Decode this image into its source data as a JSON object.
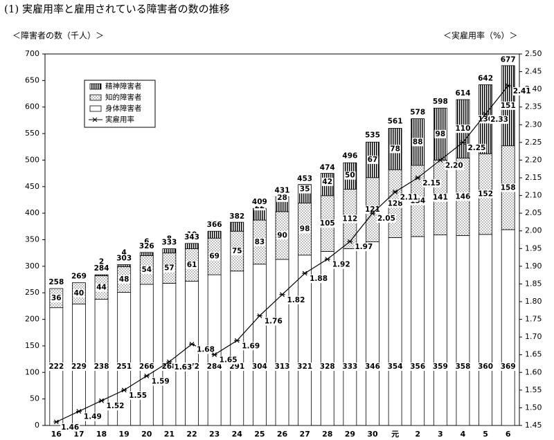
{
  "chart_data": {
    "type": "bar",
    "title": "(1) 実雇用率と雇用されている障害者の数の推移",
    "y_label": "＜障害者の数（千人）＞",
    "y2_label": "＜実雇用率（%）＞",
    "categories": [
      "16",
      "17",
      "18",
      "19",
      "20",
      "21",
      "22",
      "23",
      "24",
      "25",
      "26",
      "27",
      "28",
      "29",
      "30",
      "元",
      "2",
      "3",
      "4",
      "5",
      "6"
    ],
    "series": [
      {
        "name": "身体障害者",
        "color": "#ffffff",
        "fill": "none",
        "values": [
          222,
          229,
          238,
          251,
          266,
          268,
          272,
          284,
          291,
          304,
          313,
          321,
          328,
          333,
          346,
          354,
          356,
          359,
          358,
          360,
          369
        ]
      },
      {
        "name": "知的障害者",
        "color": "#ffffff",
        "fill": "dots",
        "values": [
          36,
          40,
          44,
          48,
          54,
          57,
          61,
          69,
          75,
          83,
          90,
          98,
          105,
          112,
          121,
          128,
          134,
          141,
          146,
          152,
          158
        ]
      },
      {
        "name": "精神障害者",
        "color": "#ffffff",
        "fill": "stripes",
        "values": [
          0,
          0,
          2,
          4,
          6,
          8,
          10,
          13,
          17,
          22,
          28,
          35,
          42,
          50,
          67,
          78,
          88,
          98,
          110,
          130,
          151
        ]
      },
      {
        "name": "実雇用率",
        "type": "line",
        "axis": "y2",
        "color": "#000000",
        "values": [
          1.46,
          1.49,
          1.52,
          1.55,
          1.59,
          1.63,
          1.68,
          1.65,
          1.69,
          1.76,
          1.82,
          1.88,
          1.92,
          1.97,
          2.05,
          2.11,
          2.15,
          2.2,
          2.25,
          2.33,
          2.41
        ],
        "value_labels": [
          "1.46",
          "1.49",
          "1.52",
          "1.55",
          "1.59",
          "1.63",
          "1.68",
          "1.65",
          "1.69",
          "1.76",
          "1.82",
          "1.88",
          "1.92",
          "1.97",
          "2.05",
          "2.11",
          "2.15",
          "2.20",
          "2.25",
          "2.33",
          "2.41"
        ]
      }
    ],
    "totals": [
      258,
      269,
      284,
      303,
      326,
      333,
      343,
      366,
      382,
      409,
      431,
      453,
      474,
      496,
      535,
      561,
      578,
      598,
      614,
      642,
      677
    ],
    "ylim": [
      0,
      700
    ],
    "yticks": [
      0,
      50,
      100,
      150,
      200,
      250,
      300,
      350,
      400,
      450,
      500,
      550,
      600,
      650,
      700
    ],
    "y2lim": [
      1.45,
      2.5
    ],
    "y2ticks": [
      1.45,
      {
        "value": 1.5,
        "label": "1.50"
      },
      1.55,
      {
        "value": 1.6,
        "label": "1.60"
      },
      1.65,
      {
        "value": 1.7,
        "label": "1.70"
      },
      1.75,
      {
        "value": 1.8,
        "label": "1.80"
      },
      1.85,
      {
        "value": 1.9,
        "label": "1.90"
      },
      1.95,
      {
        "value": 2.0,
        "label": "2.00"
      },
      2.05,
      {
        "value": 2.1,
        "label": "2.10"
      },
      2.15,
      {
        "value": 2.2,
        "label": "2.20"
      },
      2.25,
      {
        "value": 2.3,
        "label": "2.30"
      },
      2.35,
      {
        "value": 2.4,
        "label": "2.40"
      },
      2.45,
      {
        "value": 2.5,
        "label": "2.50"
      }
    ],
    "grid": false
  }
}
